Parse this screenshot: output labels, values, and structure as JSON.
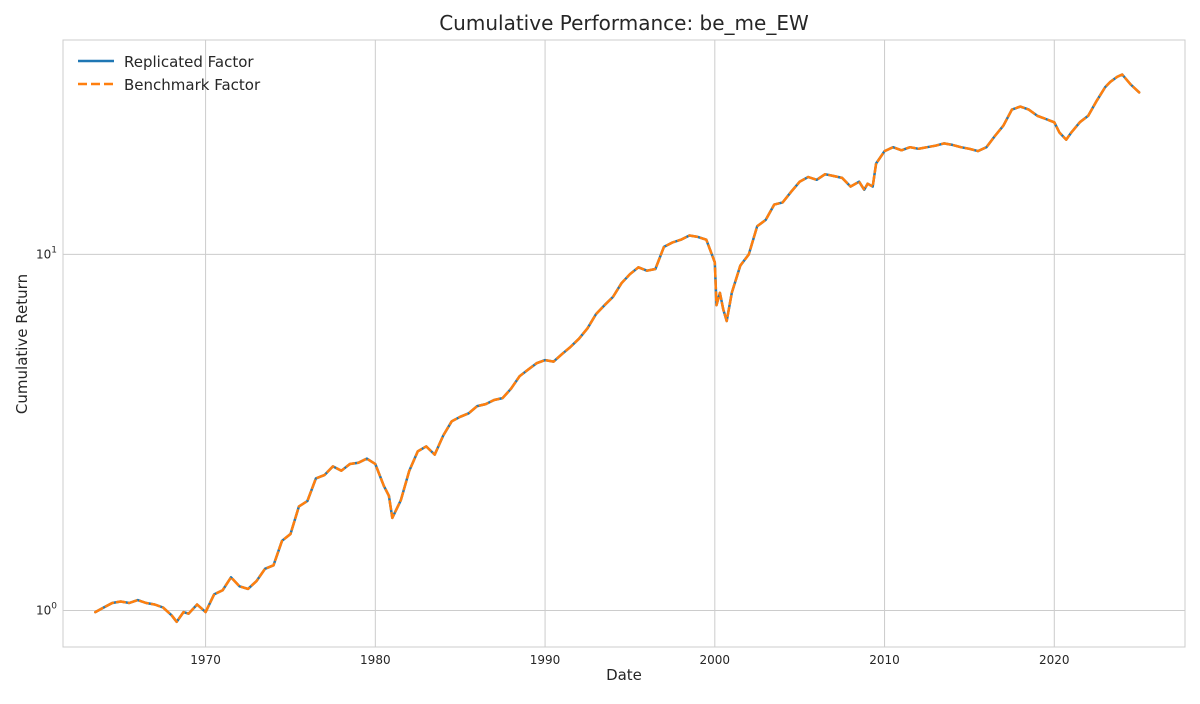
{
  "chart_data": {
    "type": "line",
    "title": "Cumulative Performance: be_me_EW",
    "xlabel": "Date",
    "ylabel": "Cumulative Return",
    "yscale": "log",
    "xlim": [
      1961.6,
      2027.7
    ],
    "ylim": [
      0.79,
      40.0
    ],
    "x_ticks": [
      1970,
      1980,
      1990,
      2000,
      2010,
      2020
    ],
    "x_tick_labels": [
      "1970",
      "1980",
      "1990",
      "2000",
      "2010",
      "2020"
    ],
    "y_ticks": [
      1,
      10
    ],
    "y_tick_labels": [
      {
        "base": "10",
        "exp": "0"
      },
      {
        "base": "10",
        "exp": "1"
      }
    ],
    "grid": true,
    "legend_position": "top-left",
    "series": [
      {
        "name": "Replicated Factor",
        "color": "#1f77b4",
        "style": "solid",
        "x": [
          1963.5,
          1964.0,
          1964.5,
          1965.0,
          1965.5,
          1966.0,
          1966.5,
          1967.0,
          1967.5,
          1968.0,
          1968.3,
          1968.7,
          1969.0,
          1969.5,
          1970.0,
          1970.5,
          1971.0,
          1971.5,
          1972.0,
          1972.5,
          1973.0,
          1973.5,
          1974.0,
          1974.5,
          1975.0,
          1975.5,
          1976.0,
          1976.5,
          1977.0,
          1977.5,
          1978.0,
          1978.5,
          1979.0,
          1979.5,
          1980.0,
          1980.5,
          1980.8,
          1981.0,
          1981.5,
          1982.0,
          1982.5,
          1983.0,
          1983.5,
          1984.0,
          1984.5,
          1985.0,
          1985.5,
          1986.0,
          1986.5,
          1987.0,
          1987.5,
          1988.0,
          1988.5,
          1989.0,
          1989.5,
          1990.0,
          1990.5,
          1991.0,
          1991.5,
          1992.0,
          1992.5,
          1993.0,
          1993.5,
          1994.0,
          1994.5,
          1995.0,
          1995.5,
          1996.0,
          1996.5,
          1997.0,
          1997.5,
          1998.0,
          1998.5,
          1999.0,
          1999.5,
          2000.0,
          2000.1,
          2000.3,
          2000.5,
          2000.7,
          2001.0,
          2001.5,
          2002.0,
          2002.5,
          2003.0,
          2003.5,
          2004.0,
          2004.5,
          2005.0,
          2005.5,
          2006.0,
          2006.5,
          2007.0,
          2007.5,
          2008.0,
          2008.5,
          2008.8,
          2009.0,
          2009.3,
          2009.5,
          2010.0,
          2010.5,
          2011.0,
          2011.5,
          2012.0,
          2012.5,
          2013.0,
          2013.5,
          2014.0,
          2014.5,
          2015.0,
          2015.5,
          2016.0,
          2016.5,
          2017.0,
          2017.5,
          2018.0,
          2018.5,
          2019.0,
          2019.5,
          2020.0,
          2020.3,
          2020.7,
          2021.0,
          2021.5,
          2022.0,
          2022.5,
          2023.0,
          2023.3,
          2023.7,
          2024.0,
          2024.5,
          2025.0
        ],
        "y": [
          0.99,
          1.02,
          1.05,
          1.06,
          1.05,
          1.07,
          1.05,
          1.04,
          1.02,
          0.97,
          0.93,
          0.99,
          0.98,
          1.04,
          0.99,
          1.11,
          1.14,
          1.24,
          1.17,
          1.15,
          1.21,
          1.31,
          1.34,
          1.57,
          1.64,
          1.96,
          2.03,
          2.35,
          2.4,
          2.54,
          2.47,
          2.58,
          2.6,
          2.67,
          2.58,
          2.24,
          2.1,
          1.82,
          2.04,
          2.47,
          2.8,
          2.89,
          2.74,
          3.1,
          3.4,
          3.5,
          3.58,
          3.75,
          3.8,
          3.9,
          3.95,
          4.2,
          4.55,
          4.75,
          4.95,
          5.05,
          5.0,
          5.25,
          5.5,
          5.8,
          6.2,
          6.8,
          7.2,
          7.6,
          8.3,
          8.8,
          9.2,
          9.0,
          9.1,
          10.5,
          10.8,
          11.0,
          11.3,
          11.2,
          11.0,
          9.5,
          7.2,
          7.8,
          7.0,
          6.5,
          7.8,
          9.3,
          10.0,
          12.0,
          12.5,
          13.8,
          14.0,
          15.0,
          16.0,
          16.5,
          16.2,
          16.8,
          16.6,
          16.4,
          15.5,
          16.0,
          15.2,
          15.8,
          15.5,
          18.0,
          19.5,
          20.0,
          19.6,
          20.0,
          19.8,
          20.0,
          20.2,
          20.5,
          20.3,
          20.0,
          19.8,
          19.5,
          20.0,
          21.5,
          23.0,
          25.5,
          26.0,
          25.5,
          24.5,
          24.0,
          23.5,
          22.0,
          21.0,
          22.0,
          23.5,
          24.5,
          27.0,
          29.5,
          30.5,
          31.5,
          32.0,
          30.0,
          28.5
        ]
      },
      {
        "name": "Benchmark Factor",
        "color": "#ff7f0e",
        "style": "dashed",
        "x": [
          1963.5,
          1964.0,
          1964.5,
          1965.0,
          1965.5,
          1966.0,
          1966.5,
          1967.0,
          1967.5,
          1968.0,
          1968.3,
          1968.7,
          1969.0,
          1969.5,
          1970.0,
          1970.5,
          1971.0,
          1971.5,
          1972.0,
          1972.5,
          1973.0,
          1973.5,
          1974.0,
          1974.5,
          1975.0,
          1975.5,
          1976.0,
          1976.5,
          1977.0,
          1977.5,
          1978.0,
          1978.5,
          1979.0,
          1979.5,
          1980.0,
          1980.5,
          1980.8,
          1981.0,
          1981.5,
          1982.0,
          1982.5,
          1983.0,
          1983.5,
          1984.0,
          1984.5,
          1985.0,
          1985.5,
          1986.0,
          1986.5,
          1987.0,
          1987.5,
          1988.0,
          1988.5,
          1989.0,
          1989.5,
          1990.0,
          1990.5,
          1991.0,
          1991.5,
          1992.0,
          1992.5,
          1993.0,
          1993.5,
          1994.0,
          1994.5,
          1995.0,
          1995.5,
          1996.0,
          1996.5,
          1997.0,
          1997.5,
          1998.0,
          1998.5,
          1999.0,
          1999.5,
          2000.0,
          2000.1,
          2000.3,
          2000.5,
          2000.7,
          2001.0,
          2001.5,
          2002.0,
          2002.5,
          2003.0,
          2003.5,
          2004.0,
          2004.5,
          2005.0,
          2005.5,
          2006.0,
          2006.5,
          2007.0,
          2007.5,
          2008.0,
          2008.5,
          2008.8,
          2009.0,
          2009.3,
          2009.5,
          2010.0,
          2010.5,
          2011.0,
          2011.5,
          2012.0,
          2012.5,
          2013.0,
          2013.5,
          2014.0,
          2014.5,
          2015.0,
          2015.5,
          2016.0,
          2016.5,
          2017.0,
          2017.5,
          2018.0,
          2018.5,
          2019.0,
          2019.5,
          2020.0,
          2020.3,
          2020.7,
          2021.0,
          2021.5,
          2022.0,
          2022.5,
          2023.0,
          2023.3,
          2023.7,
          2024.0,
          2024.5,
          2025.0
        ],
        "y": [
          0.99,
          1.02,
          1.05,
          1.06,
          1.05,
          1.07,
          1.05,
          1.04,
          1.02,
          0.97,
          0.93,
          0.99,
          0.98,
          1.04,
          0.99,
          1.11,
          1.14,
          1.24,
          1.17,
          1.15,
          1.21,
          1.31,
          1.34,
          1.57,
          1.64,
          1.96,
          2.03,
          2.35,
          2.4,
          2.54,
          2.47,
          2.58,
          2.6,
          2.67,
          2.58,
          2.24,
          2.1,
          1.82,
          2.04,
          2.47,
          2.8,
          2.89,
          2.74,
          3.1,
          3.4,
          3.5,
          3.58,
          3.75,
          3.8,
          3.9,
          3.95,
          4.2,
          4.55,
          4.75,
          4.95,
          5.05,
          5.0,
          5.25,
          5.5,
          5.8,
          6.2,
          6.8,
          7.2,
          7.6,
          8.3,
          8.8,
          9.2,
          9.0,
          9.1,
          10.5,
          10.8,
          11.0,
          11.3,
          11.2,
          11.0,
          9.5,
          7.2,
          7.8,
          7.0,
          6.5,
          7.8,
          9.3,
          10.0,
          12.0,
          12.5,
          13.8,
          14.0,
          15.0,
          16.0,
          16.5,
          16.2,
          16.8,
          16.6,
          16.4,
          15.5,
          16.0,
          15.2,
          15.8,
          15.5,
          18.0,
          19.5,
          20.0,
          19.6,
          20.0,
          19.8,
          20.0,
          20.2,
          20.5,
          20.3,
          20.0,
          19.8,
          19.5,
          20.0,
          21.5,
          23.0,
          25.5,
          26.0,
          25.5,
          24.5,
          24.0,
          23.5,
          22.0,
          21.0,
          22.0,
          23.5,
          24.5,
          27.0,
          29.5,
          30.5,
          31.5,
          32.0,
          30.0,
          28.5
        ]
      }
    ]
  }
}
